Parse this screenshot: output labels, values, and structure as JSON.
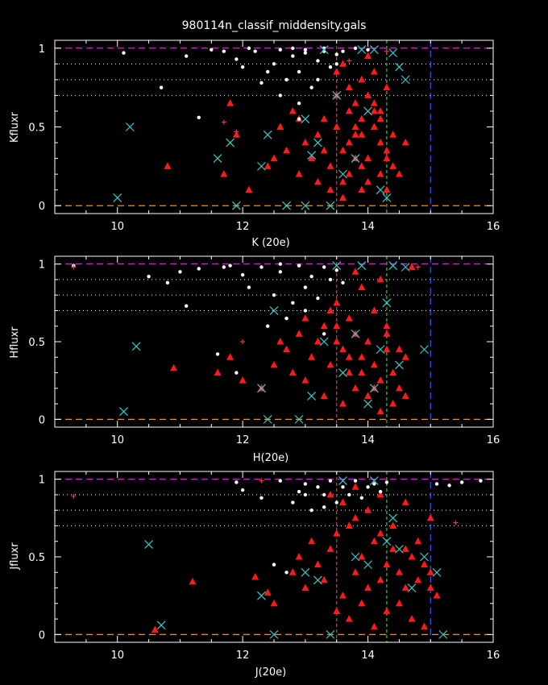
{
  "title": "980114n_classif_middensity.gals",
  "colors": {
    "background": "#000000",
    "axes": "#ffffff",
    "ref_line_top": "#ff00ff",
    "ref_line_bottom": "#ff8c1a",
    "dotted_lines": "#ffffff",
    "vline_red": "#ff3030",
    "vline_green": "#33cc33",
    "vline_blue": "#3355ff",
    "triangle": "#ff1a1a",
    "dot": "#ffffff",
    "cross": "#33cccc",
    "plus": "#ff3030"
  },
  "chart_data": [
    {
      "type": "scatter",
      "title": "",
      "xlabel": "K (20e)",
      "ylabel": "Kfluxr",
      "xlim": [
        9,
        16
      ],
      "ylim": [
        -0.05,
        1.05
      ],
      "xticks": [
        "10",
        "12",
        "14",
        "16"
      ],
      "yticks": [
        "0",
        "0.5",
        "1"
      ],
      "hlines": {
        "dashed": [
          0,
          1
        ],
        "dotted": [
          0.7,
          0.8,
          0.9
        ]
      },
      "vlines": {
        "red": 13.5,
        "green": 14.3,
        "blue": 15.0
      },
      "series": [
        {
          "marker": "triangle",
          "x": [
            10.8,
            11.8,
            11.9,
            11.7,
            12.1,
            12.4,
            12.5,
            12.6,
            12.7,
            12.8,
            12.9,
            13.0,
            13.1,
            13.2,
            13.3,
            13.4,
            13.5,
            13.6,
            13.7,
            13.8,
            13.9,
            14.0,
            14.1,
            14.2,
            14.3,
            14.4,
            14.5,
            13.5,
            13.6,
            13.7,
            13.8,
            13.9,
            14.0,
            14.1,
            14.2,
            14.3,
            13.4,
            13.6,
            13.8,
            14.0,
            14.2,
            14.4,
            13.5,
            13.7,
            13.9,
            14.1,
            14.3,
            13.3,
            13.6,
            13.9,
            14.2,
            14.6,
            12.9,
            13.2,
            13.8,
            14.0,
            14.1,
            13.7,
            13.9,
            14.3
          ],
          "y": [
            0.25,
            0.65,
            0.45,
            0.2,
            0.1,
            0.25,
            0.3,
            0.5,
            0.35,
            0.6,
            0.2,
            0.4,
            0.3,
            0.45,
            0.55,
            0.25,
            0.7,
            0.35,
            0.6,
            0.45,
            0.55,
            0.3,
            0.5,
            0.4,
            0.35,
            0.25,
            0.2,
            0.85,
            0.9,
            0.75,
            0.65,
            0.8,
            0.7,
            0.6,
            0.55,
            0.75,
            0.1,
            0.15,
            0.3,
            0.15,
            0.2,
            0.45,
            0.5,
            0.4,
            0.25,
            0.65,
            0.1,
            0.35,
            0.05,
            0.45,
            0.6,
            0.4,
            0.55,
            0.15,
            0.5,
            0.95,
            0.85,
            0.2,
            0.1,
            0.3
          ]
        },
        {
          "marker": "dot",
          "x": [
            10.1,
            10.7,
            11.1,
            11.3,
            11.5,
            11.9,
            12.0,
            12.2,
            12.4,
            12.5,
            12.6,
            12.7,
            12.8,
            12.9,
            13.0,
            13.1,
            13.2,
            13.3,
            13.4,
            13.5,
            12.3,
            12.6,
            12.9,
            13.2,
            13.5,
            11.7,
            12.1,
            12.8,
            13.0,
            13.3,
            13.6,
            13.8,
            14.0,
            12.9
          ],
          "y": [
            0.97,
            0.75,
            0.95,
            0.56,
            0.99,
            0.93,
            0.88,
            0.98,
            0.85,
            0.9,
            0.99,
            0.8,
            0.95,
            0.85,
            0.97,
            0.75,
            0.92,
            0.98,
            0.88,
            0.96,
            0.78,
            0.7,
            0.65,
            0.8,
            0.9,
            0.98,
            1.0,
            1.0,
            0.99,
            1.0,
            0.98,
            1.0,
            0.99,
            0.55
          ]
        },
        {
          "marker": "cross",
          "x": [
            10.0,
            10.2,
            11.6,
            11.8,
            11.9,
            12.3,
            12.4,
            13.0,
            13.2,
            13.4,
            13.5,
            13.8,
            14.0,
            14.2,
            14.3,
            14.5,
            14.6,
            13.0,
            13.3,
            13.9,
            12.7,
            13.6,
            14.4,
            14.1,
            13.1
          ],
          "y": [
            0.05,
            0.5,
            0.3,
            0.4,
            0.0,
            0.25,
            0.45,
            0.0,
            0.4,
            0.0,
            0.7,
            0.3,
            0.6,
            0.1,
            0.05,
            0.88,
            0.8,
            0.55,
            0.99,
            0.99,
            0.0,
            0.2,
            0.97,
            0.99,
            0.32
          ]
        },
        {
          "marker": "plus",
          "x": [
            11.7,
            11.9,
            14.3,
            13.7
          ],
          "y": [
            0.53,
            0.47,
            0.98,
            0.92
          ]
        }
      ]
    },
    {
      "type": "scatter",
      "title": "",
      "xlabel": "H(20e)",
      "ylabel": "Hfluxr",
      "xlim": [
        9,
        16
      ],
      "ylim": [
        -0.05,
        1.05
      ],
      "xticks": [
        "10",
        "12",
        "14",
        "16"
      ],
      "yticks": [
        "0",
        "0.5",
        "1"
      ],
      "hlines": {
        "dashed": [
          0,
          1
        ],
        "dotted": [
          0.7,
          0.8,
          0.9
        ]
      },
      "vlines": {
        "red": 13.5,
        "green": 14.3,
        "blue": 15.0
      },
      "series": [
        {
          "marker": "triangle",
          "x": [
            10.9,
            11.6,
            11.8,
            12.0,
            12.3,
            12.5,
            12.7,
            12.8,
            12.9,
            13.0,
            13.1,
            13.2,
            13.3,
            13.4,
            13.5,
            13.6,
            13.7,
            13.8,
            13.9,
            14.0,
            14.1,
            14.2,
            14.3,
            14.4,
            14.5,
            14.6,
            14.7,
            13.5,
            13.7,
            13.9,
            14.1,
            14.3,
            13.6,
            13.8,
            14.0,
            14.2,
            14.4,
            13.3,
            13.5,
            13.7,
            13.9,
            14.1,
            14.3,
            14.5,
            12.6,
            13.0,
            13.4,
            13.8,
            14.2,
            14.6
          ],
          "y": [
            0.33,
            0.3,
            0.4,
            0.25,
            0.2,
            0.35,
            0.45,
            0.3,
            0.55,
            0.25,
            0.4,
            0.5,
            0.15,
            0.35,
            0.6,
            0.45,
            0.3,
            0.55,
            0.4,
            0.5,
            0.35,
            0.25,
            0.45,
            0.3,
            0.2,
            0.4,
            0.98,
            0.75,
            0.65,
            0.85,
            0.7,
            0.6,
            0.1,
            0.2,
            0.15,
            0.05,
            0.1,
            0.6,
            0.5,
            0.4,
            0.3,
            0.2,
            0.55,
            0.45,
            0.5,
            0.65,
            0.7,
            0.95,
            0.9,
            0.15
          ]
        },
        {
          "marker": "dot",
          "x": [
            9.3,
            10.5,
            10.8,
            11.0,
            11.1,
            11.3,
            11.6,
            11.8,
            11.9,
            12.0,
            12.1,
            12.3,
            12.5,
            12.6,
            12.8,
            12.9,
            13.0,
            13.1,
            13.2,
            13.3,
            13.4,
            13.5,
            13.6,
            12.4,
            12.7,
            13.0,
            13.3,
            12.9,
            11.7,
            12.6
          ],
          "y": [
            0.99,
            0.92,
            0.88,
            0.95,
            0.73,
            0.97,
            0.42,
            0.99,
            0.3,
            0.93,
            0.85,
            0.98,
            0.8,
            0.95,
            0.75,
            0.99,
            0.85,
            0.92,
            0.78,
            0.98,
            0.9,
            0.96,
            0.88,
            0.6,
            0.65,
            0.7,
            0.55,
            0.99,
            0.98,
            1.0
          ]
        },
        {
          "marker": "cross",
          "x": [
            10.3,
            10.1,
            12.3,
            12.4,
            12.9,
            13.3,
            13.6,
            13.8,
            14.0,
            14.2,
            14.3,
            14.5,
            14.6,
            14.9,
            13.5,
            13.9,
            14.1,
            12.5,
            13.1,
            14.4
          ],
          "y": [
            0.47,
            0.05,
            0.2,
            0.0,
            0.0,
            0.5,
            0.3,
            0.55,
            0.1,
            0.45,
            0.75,
            0.35,
            0.98,
            0.45,
            0.99,
            0.99,
            0.2,
            0.7,
            0.15,
            0.99
          ]
        },
        {
          "marker": "plus",
          "x": [
            9.3,
            12.0,
            14.8
          ],
          "y": [
            0.98,
            0.5,
            0.98
          ]
        }
      ]
    },
    {
      "type": "scatter",
      "title": "",
      "xlabel": "J(20e)",
      "ylabel": "Jfluxr",
      "xlim": [
        9,
        16
      ],
      "ylim": [
        -0.05,
        1.05
      ],
      "xticks": [
        "10",
        "12",
        "14",
        "16"
      ],
      "yticks": [
        "0",
        "0.5",
        "1"
      ],
      "hlines": {
        "dashed": [
          0,
          1
        ],
        "dotted": [
          0.7,
          0.8,
          0.9
        ]
      },
      "vlines": {
        "red": 13.5,
        "green": 14.3,
        "blue": 15.0
      },
      "series": [
        {
          "marker": "triangle",
          "x": [
            10.6,
            11.2,
            12.2,
            12.4,
            12.5,
            12.8,
            12.9,
            13.0,
            13.1,
            13.2,
            13.3,
            13.4,
            13.5,
            13.6,
            13.7,
            13.8,
            13.9,
            14.0,
            14.1,
            14.2,
            14.3,
            14.4,
            14.5,
            14.6,
            14.7,
            14.8,
            14.9,
            15.0,
            15.1,
            13.6,
            13.8,
            14.0,
            14.2,
            14.4,
            14.6,
            14.8,
            15.0,
            13.5,
            13.7,
            13.9,
            14.1,
            14.3,
            14.5,
            14.7,
            14.9,
            13.4,
            13.8,
            14.2,
            14.6,
            15.0
          ],
          "y": [
            0.03,
            0.34,
            0.37,
            0.27,
            0.2,
            0.4,
            0.5,
            0.3,
            0.6,
            0.45,
            0.35,
            0.55,
            0.65,
            0.25,
            0.7,
            0.4,
            0.5,
            0.3,
            0.6,
            0.35,
            0.45,
            0.55,
            0.4,
            0.3,
            0.5,
            0.35,
            0.45,
            0.3,
            0.25,
            0.85,
            0.75,
            0.8,
            0.65,
            0.7,
            0.55,
            0.6,
            0.4,
            0.15,
            0.1,
            0.2,
            0.05,
            0.15,
            0.2,
            0.1,
            0.05,
            0.9,
            0.95,
            0.9,
            0.85,
            0.75
          ]
        },
        {
          "marker": "dot",
          "x": [
            11.9,
            12.0,
            12.3,
            12.6,
            12.8,
            12.9,
            13.0,
            13.1,
            13.2,
            13.3,
            13.4,
            13.5,
            13.6,
            13.7,
            13.8,
            13.9,
            14.0,
            14.1,
            14.2,
            14.3,
            15.1,
            15.3,
            15.5,
            15.8,
            13.3,
            12.5,
            12.7,
            13.0
          ],
          "y": [
            0.98,
            0.93,
            0.88,
            0.99,
            0.85,
            0.92,
            0.97,
            0.8,
            0.95,
            0.9,
            0.99,
            0.85,
            0.95,
            0.9,
            0.99,
            0.88,
            0.95,
            0.97,
            0.92,
            0.98,
            0.97,
            0.96,
            0.98,
            0.99,
            0.82,
            0.45,
            0.4,
            0.9
          ]
        },
        {
          "marker": "cross",
          "x": [
            10.5,
            10.7,
            12.3,
            12.5,
            13.0,
            13.2,
            13.4,
            13.8,
            14.0,
            14.3,
            14.5,
            14.7,
            14.9,
            15.1,
            15.2,
            13.6,
            14.1,
            14.4
          ],
          "y": [
            0.58,
            0.06,
            0.25,
            0.0,
            0.4,
            0.35,
            0.0,
            0.5,
            0.45,
            0.6,
            0.55,
            0.3,
            0.5,
            0.4,
            0.0,
            0.99,
            0.99,
            0.75
          ]
        },
        {
          "marker": "plus",
          "x": [
            9.3,
            15.4,
            12.3
          ],
          "y": [
            0.89,
            0.72,
            0.99
          ]
        }
      ]
    }
  ]
}
